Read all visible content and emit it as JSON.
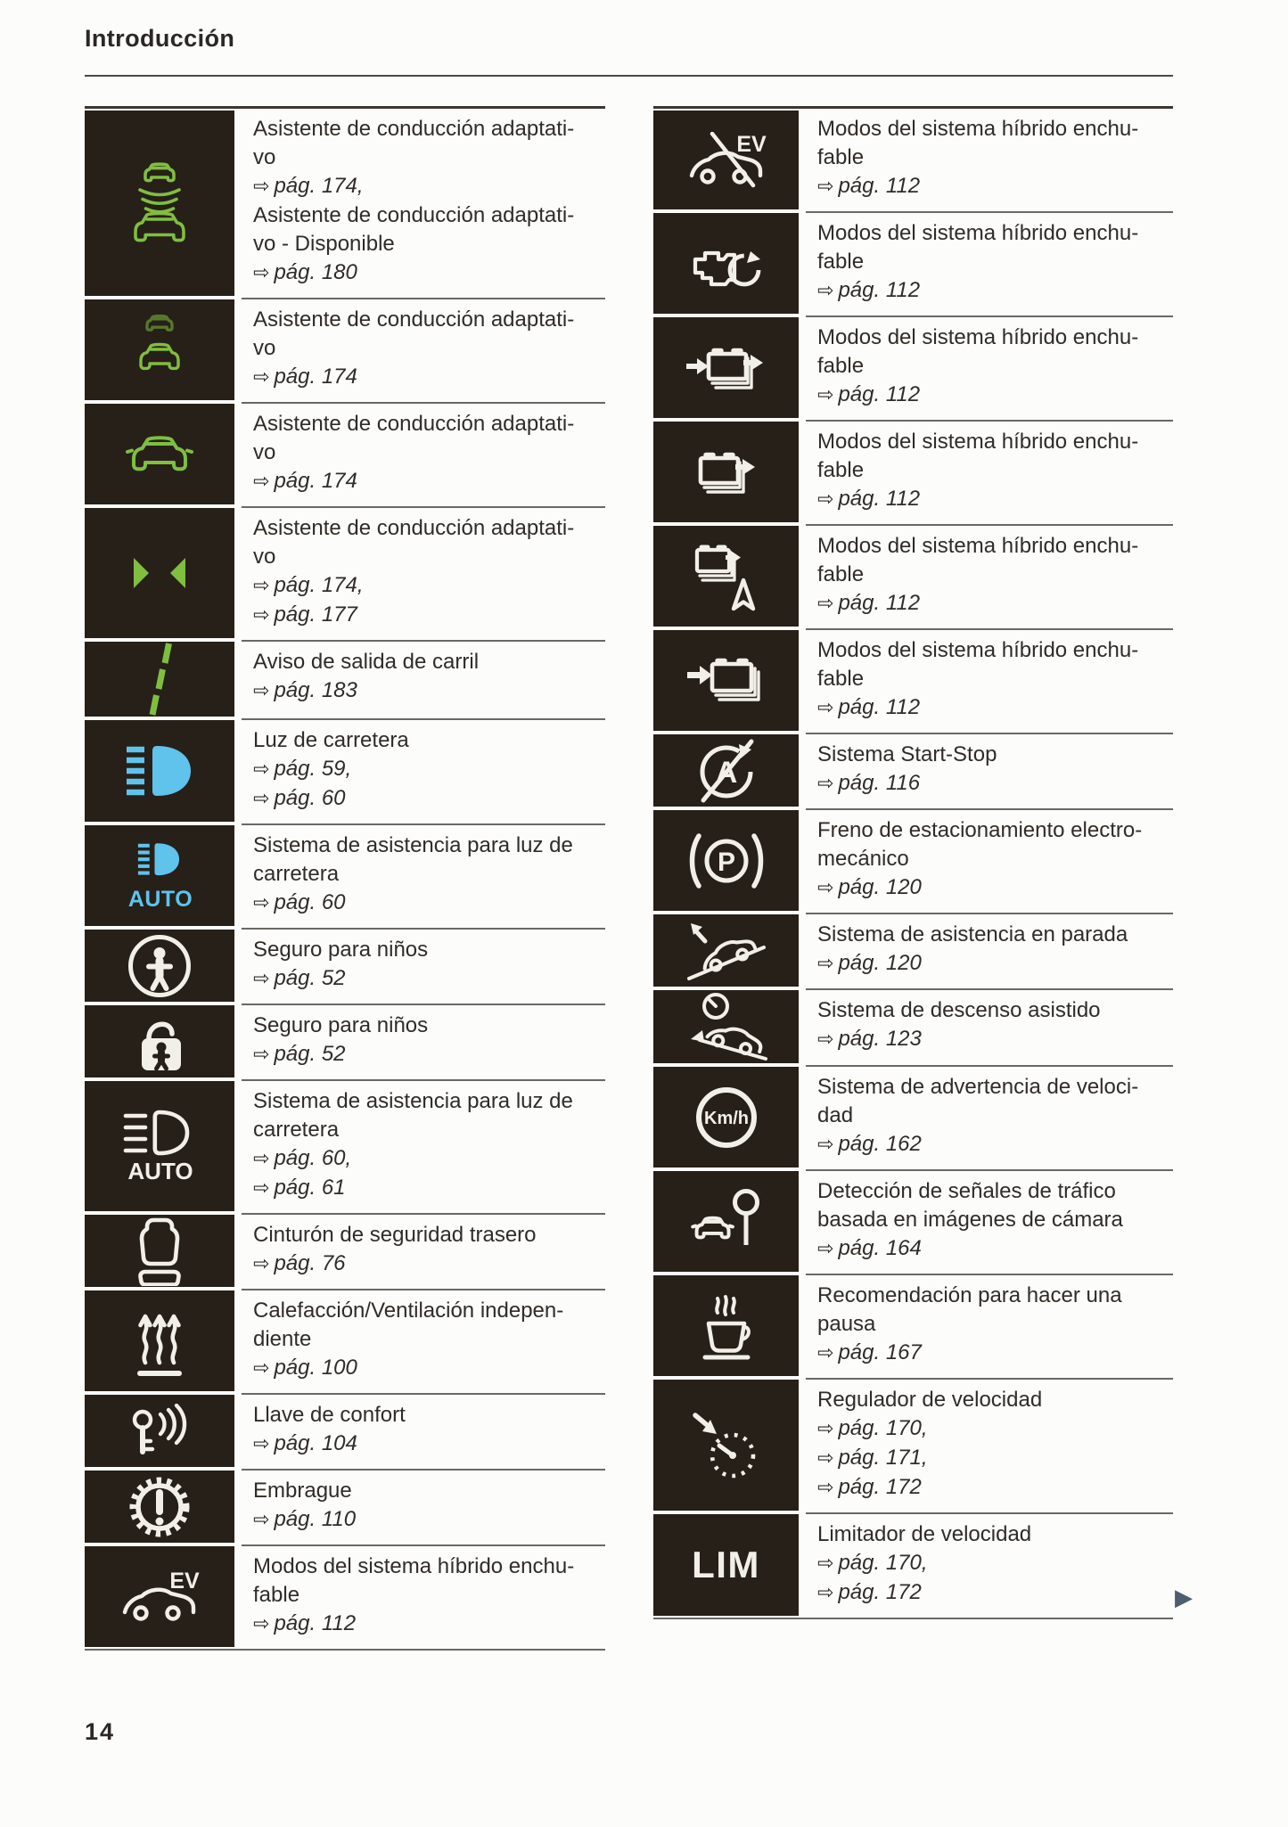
{
  "header": {
    "title": "Introducción"
  },
  "page_number": "14",
  "ref_arrow": "⇨",
  "continuation_arrow": "▶",
  "icon_texts": {
    "ev": "EV",
    "auto": "AUTO",
    "kmh": "Km/h",
    "p": "P",
    "a": "A",
    "lim": "LIM"
  },
  "palette": {
    "cell_bg": "#262019",
    "green": "#7fbe3f",
    "blue": "#5fc3ec",
    "white": "#f2efe9",
    "text": "#302c27",
    "text_dark": "#2b2723",
    "row_line": "#6b6862",
    "table_top": "#3b3732",
    "rule": "#4c4843",
    "next_arrow": "#4c5e6f"
  },
  "tables": {
    "left": {
      "rows": [
        {
          "icon": "acc-distance-cars-icon",
          "color": "green",
          "lines": [
            {
              "text": "Asistente de conducción adaptati-"
            },
            {
              "text": "vo"
            },
            {
              "ref": "pág. 174,"
            },
            {
              "text": "Asistente de conducción adaptati-"
            },
            {
              "text": "vo - Disponible"
            },
            {
              "ref": "pág. 180"
            }
          ]
        },
        {
          "icon": "acc-follow-cars-icon",
          "color": "green",
          "lines": [
            {
              "text": "Asistente de conducción adaptati-"
            },
            {
              "text": "vo"
            },
            {
              "ref": "pág. 174"
            }
          ]
        },
        {
          "icon": "acc-car-icon",
          "color": "green",
          "lines": [
            {
              "text": "Asistente de conducción adaptati-"
            },
            {
              "text": "vo"
            },
            {
              "ref": "pág. 174"
            }
          ]
        },
        {
          "icon": "lane-assist-triangles-icon",
          "color": "green",
          "lines": [
            {
              "text": "Asistente de conducción adaptati-"
            },
            {
              "text": "vo"
            },
            {
              "ref": "pág. 174,"
            },
            {
              "ref": "pág. 177"
            }
          ]
        },
        {
          "icon": "lane-departure-line-icon",
          "color": "green",
          "lines": [
            {
              "text": "Aviso de salida de carril"
            },
            {
              "ref": "pág. 183"
            }
          ]
        },
        {
          "icon": "high-beam-icon",
          "color": "blue",
          "lines": [
            {
              "text": "Luz de carretera"
            },
            {
              "ref": "pág. 59,"
            },
            {
              "ref": "pág. 60"
            }
          ]
        },
        {
          "icon": "high-beam-auto-icon",
          "color": "blue",
          "lines": [
            {
              "text": "Sistema de asistencia para luz de"
            },
            {
              "text": "carretera"
            },
            {
              "ref": "pág. 60"
            }
          ]
        },
        {
          "icon": "child-figure-circle-icon",
          "color": "white",
          "lines": [
            {
              "text": "Seguro para niños"
            },
            {
              "ref": "pág. 52"
            }
          ]
        },
        {
          "icon": "child-lock-padlock-icon",
          "color": "white",
          "lines": [
            {
              "text": "Seguro para niños"
            },
            {
              "ref": "pág. 52"
            }
          ]
        },
        {
          "icon": "high-beam-auto-outline-icon",
          "color": "white",
          "lines": [
            {
              "text": "Sistema de asistencia para luz de"
            },
            {
              "text": "carretera"
            },
            {
              "ref": "pág. 60,"
            },
            {
              "ref": "pág. 61"
            }
          ]
        },
        {
          "icon": "rear-seat-icon",
          "color": "white",
          "lines": [
            {
              "text": "Cinturón de seguridad trasero"
            },
            {
              "ref": "pág. 76"
            }
          ]
        },
        {
          "icon": "aux-heating-icon",
          "color": "white",
          "lines": [
            {
              "text": "Calefacción/Ventilación indepen-"
            },
            {
              "text": "diente"
            },
            {
              "ref": "pág. 100"
            }
          ]
        },
        {
          "icon": "comfort-key-icon",
          "color": "white",
          "lines": [
            {
              "text": "Llave de confort"
            },
            {
              "ref": "pág. 104"
            }
          ]
        },
        {
          "icon": "clutch-warning-icon",
          "color": "white",
          "lines": [
            {
              "text": "Embrague"
            },
            {
              "ref": "pág. 110"
            }
          ]
        },
        {
          "icon": "ev-mode-car-icon",
          "color": "white",
          "lines": [
            {
              "text": "Modos del sistema híbrido enchu-"
            },
            {
              "text": "fable"
            },
            {
              "ref": "pág. 112"
            }
          ]
        }
      ]
    },
    "right": {
      "rows": [
        {
          "icon": "ev-mode-off-icon",
          "color": "white",
          "lines": [
            {
              "text": "Modos del sistema híbrido enchu-"
            },
            {
              "text": "fable"
            },
            {
              "ref": "pág. 112"
            }
          ]
        },
        {
          "icon": "engine-restart-icon",
          "color": "white",
          "lines": [
            {
              "text": "Modos del sistema híbrido enchu-"
            },
            {
              "text": "fable"
            },
            {
              "ref": "pág. 112"
            }
          ]
        },
        {
          "icon": "battery-charge-discharge-icon",
          "color": "white",
          "lines": [
            {
              "text": "Modos del sistema híbrido enchu-"
            },
            {
              "text": "fable"
            },
            {
              "ref": "pág. 112"
            }
          ]
        },
        {
          "icon": "battery-discharge-icon",
          "color": "white",
          "lines": [
            {
              "text": "Modos del sistema híbrido enchu-"
            },
            {
              "text": "fable"
            },
            {
              "ref": "pág. 112"
            }
          ]
        },
        {
          "icon": "battery-nav-icon",
          "color": "white",
          "lines": [
            {
              "text": "Modos del sistema híbrido enchu-"
            },
            {
              "text": "fable"
            },
            {
              "ref": "pág. 112"
            }
          ]
        },
        {
          "icon": "battery-charge-icon",
          "color": "white",
          "lines": [
            {
              "text": "Modos del sistema híbrido enchu-"
            },
            {
              "text": "fable"
            },
            {
              "ref": "pág. 112"
            }
          ]
        },
        {
          "icon": "start-stop-off-icon",
          "color": "white",
          "lines": [
            {
              "text": "Sistema Start-Stop"
            },
            {
              "ref": "pág. 116"
            }
          ]
        },
        {
          "icon": "parking-brake-icon",
          "color": "white",
          "lines": [
            {
              "text": "Freno de estacionamiento electro-"
            },
            {
              "text": "mecánico"
            },
            {
              "ref": "pág. 120"
            }
          ]
        },
        {
          "icon": "hold-assist-icon",
          "color": "white",
          "lines": [
            {
              "text": "Sistema de asistencia en parada"
            },
            {
              "ref": "pág. 120"
            }
          ]
        },
        {
          "icon": "hill-descent-icon",
          "color": "white",
          "lines": [
            {
              "text": "Sistema de descenso asistido"
            },
            {
              "ref": "pág. 123"
            }
          ]
        },
        {
          "icon": "speed-warning-icon",
          "color": "white",
          "lines": [
            {
              "text": "Sistema de advertencia de veloci-"
            },
            {
              "text": "dad"
            },
            {
              "ref": "pág. 162"
            }
          ]
        },
        {
          "icon": "traffic-sign-recognition-icon",
          "color": "white",
          "lines": [
            {
              "text": "Detección de señales de tráfico"
            },
            {
              "text": "basada en imágenes de cámara"
            },
            {
              "ref": "pág. 164"
            }
          ]
        },
        {
          "icon": "break-recommendation-icon",
          "color": "white",
          "lines": [
            {
              "text": "Recomendación para hacer una"
            },
            {
              "text": "pausa"
            },
            {
              "ref": "pág. 167"
            }
          ]
        },
        {
          "icon": "cruise-control-icon",
          "color": "white",
          "lines": [
            {
              "text": "Regulador de velocidad"
            },
            {
              "ref": "pág. 170,"
            },
            {
              "ref": "pág. 171,"
            },
            {
              "ref": "pág. 172"
            }
          ]
        },
        {
          "icon": "speed-limiter-icon",
          "color": "white",
          "lines": [
            {
              "text": "Limitador de velocidad"
            },
            {
              "ref": "pág. 170,"
            },
            {
              "ref": "pág. 172"
            }
          ]
        }
      ]
    }
  }
}
